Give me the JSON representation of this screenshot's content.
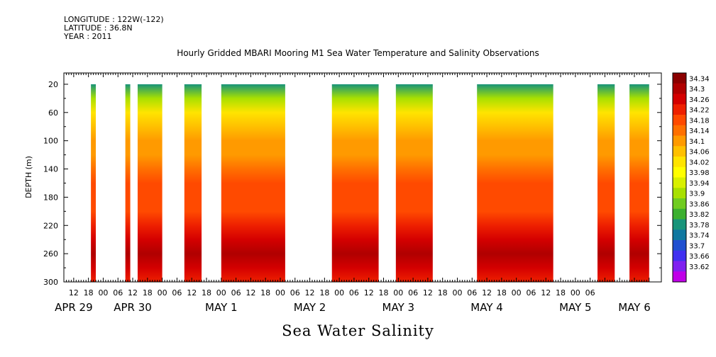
{
  "header": {
    "longitude": "LONGITUDE : 122W(-122)",
    "latitude": "LATITUDE : 36.8N",
    "year": "YEAR : 2011"
  },
  "chart_data": {
    "type": "heatmap",
    "title": "Hourly Gridded MBARI Mooring M1 Sea Water Temperature and Salinity Observations",
    "xlabel": "Sea Water Salinity",
    "ylabel": "DEPTH (m)",
    "x_unit": "hours since APR 29 00:00, 2011",
    "xlim": [
      8,
      224
    ],
    "ylim": [
      300,
      4
    ],
    "y_ticks": [
      20,
      60,
      100,
      140,
      180,
      220,
      260,
      300
    ],
    "x_tick_labels": [
      {
        "hour": 12,
        "label": "12"
      },
      {
        "hour": 18,
        "label": "18"
      },
      {
        "hour": 24,
        "label": "00"
      },
      {
        "hour": 30,
        "label": "06"
      },
      {
        "hour": 36,
        "label": "12"
      },
      {
        "hour": 42,
        "label": "18"
      },
      {
        "hour": 48,
        "label": "00"
      },
      {
        "hour": 54,
        "label": "06"
      },
      {
        "hour": 60,
        "label": "12"
      },
      {
        "hour": 66,
        "label": "18"
      },
      {
        "hour": 72,
        "label": "00"
      },
      {
        "hour": 78,
        "label": "06"
      },
      {
        "hour": 84,
        "label": "12"
      },
      {
        "hour": 90,
        "label": "18"
      },
      {
        "hour": 96,
        "label": "00"
      },
      {
        "hour": 102,
        "label": "06"
      },
      {
        "hour": 108,
        "label": "12"
      },
      {
        "hour": 114,
        "label": "18"
      },
      {
        "hour": 120,
        "label": "00"
      },
      {
        "hour": 126,
        "label": "06"
      },
      {
        "hour": 132,
        "label": "12"
      },
      {
        "hour": 138,
        "label": "18"
      },
      {
        "hour": 144,
        "label": "00"
      },
      {
        "hour": 150,
        "label": "06"
      },
      {
        "hour": 156,
        "label": "12"
      },
      {
        "hour": 162,
        "label": "18"
      },
      {
        "hour": 168,
        "label": "00"
      },
      {
        "hour": 174,
        "label": "06"
      },
      {
        "hour": 180,
        "label": "12"
      },
      {
        "hour": 186,
        "label": "18"
      },
      {
        "hour": 192,
        "label": "00"
      },
      {
        "hour": 198,
        "label": "06"
      },
      {
        "hour": 204,
        "label": "12"
      },
      {
        "hour": 210,
        "label": "18"
      },
      {
        "hour": 216,
        "label": "00"
      },
      {
        "hour": 222,
        "label": "06"
      }
    ],
    "date_labels": [
      {
        "hour": 12,
        "label": "APR 29"
      },
      {
        "hour": 36,
        "label": "APR 30"
      },
      {
        "hour": 72,
        "label": "MAY  1"
      },
      {
        "hour": 108,
        "label": "MAY  2"
      },
      {
        "hour": 144,
        "label": "MAY  3"
      },
      {
        "hour": 180,
        "label": "MAY  4"
      },
      {
        "hour": 216,
        "label": "MAY  5"
      },
      {
        "hour": 240,
        "label": "MAY  6"
      }
    ],
    "colorbar_levels": [
      "34.34",
      "34.3",
      "34.26",
      "34.22",
      "34.18",
      "34.14",
      "34.1",
      "34.06",
      "34.02",
      "33.98",
      "33.94",
      "33.9",
      "33.86",
      "33.82",
      "33.78",
      "33.74",
      "33.7",
      "33.66",
      "33.62"
    ],
    "colorbar_colors": [
      "#8b0000",
      "#b00000",
      "#d40000",
      "#ee2000",
      "#ff4a00",
      "#ff7000",
      "#ff9a00",
      "#ffc000",
      "#ffe400",
      "#ffff00",
      "#d8f000",
      "#a8e000",
      "#70cc20",
      "#3cb030",
      "#18947a",
      "#1078a0",
      "#2050d0",
      "#4030f0",
      "#8020f0",
      "#c000e8"
    ],
    "data_segments": [
      {
        "start": 19,
        "end": 21
      },
      {
        "start": 33,
        "end": 35
      },
      {
        "start": 38,
        "end": 48
      },
      {
        "start": 57,
        "end": 64
      },
      {
        "start": 72,
        "end": 98
      },
      {
        "start": 117,
        "end": 136
      },
      {
        "start": 143,
        "end": 158
      },
      {
        "start": 176,
        "end": 207
      },
      {
        "start": 225,
        "end": 232
      },
      {
        "start": 238,
        "end": 246
      }
    ],
    "depth_profile": [
      {
        "depth": 20,
        "salinity": 33.8
      },
      {
        "depth": 40,
        "salinity": 33.92
      },
      {
        "depth": 60,
        "salinity": 34.02
      },
      {
        "depth": 80,
        "salinity": 34.08
      },
      {
        "depth": 100,
        "salinity": 34.1
      },
      {
        "depth": 120,
        "salinity": 34.13
      },
      {
        "depth": 140,
        "salinity": 34.16
      },
      {
        "depth": 160,
        "salinity": 34.18
      },
      {
        "depth": 180,
        "salinity": 34.18
      },
      {
        "depth": 200,
        "salinity": 34.2
      },
      {
        "depth": 220,
        "salinity": 34.22
      },
      {
        "depth": 240,
        "salinity": 34.27
      },
      {
        "depth": 260,
        "salinity": 34.31
      },
      {
        "depth": 280,
        "salinity": 34.26
      },
      {
        "depth": 300,
        "salinity": 34.22
      }
    ]
  }
}
